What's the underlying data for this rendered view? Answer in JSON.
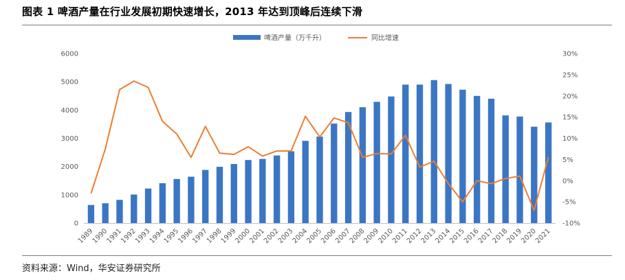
{
  "title": "图表 1  啤酒产量在行业发展初期快速增长，2013 年达到顶峰后连续下滑",
  "source": "资料来源：Wind，华安证券研究所",
  "chart_data": {
    "type": "bar",
    "categories": [
      "1989",
      "1990",
      "1991",
      "1992",
      "1993",
      "1994",
      "1995",
      "1996",
      "1997",
      "1998",
      "1999",
      "2000",
      "2001",
      "2002",
      "2003",
      "2004",
      "2005",
      "2006",
      "2007",
      "2008",
      "2009",
      "2010",
      "2011",
      "2012",
      "2013",
      "2014",
      "2015",
      "2016",
      "2017",
      "2018",
      "2019",
      "2020",
      "2021"
    ],
    "series": [
      {
        "name": "啤酒产量（万千升）",
        "type": "bar",
        "axis": "left",
        "color": "#3a76c4",
        "values": [
          640,
          700,
          820,
          1010,
          1220,
          1410,
          1560,
          1640,
          1880,
          1990,
          2090,
          2230,
          2270,
          2390,
          2540,
          2910,
          3060,
          3520,
          3930,
          4100,
          4290,
          4480,
          4900,
          4900,
          5060,
          4920,
          4720,
          4500,
          4400,
          3810,
          3770,
          3410,
          3560
        ]
      },
      {
        "name": "同比增速",
        "type": "line",
        "axis": "right",
        "color": "#ed7d31",
        "values": [
          -3.0,
          7.5,
          21.5,
          23.5,
          22.0,
          14.0,
          11.0,
          5.5,
          12.8,
          6.5,
          6.2,
          8.0,
          5.8,
          7.0,
          7.0,
          15.2,
          10.3,
          14.8,
          13.7,
          5.5,
          6.4,
          6.3,
          10.7,
          3.2,
          4.6,
          -0.7,
          -5.0,
          0.0,
          -0.7,
          0.5,
          1.1,
          -7.0,
          5.6
        ]
      }
    ],
    "ylim_left": [
      0,
      6000
    ],
    "yticks_left": [
      "0",
      "1000",
      "2000",
      "3000",
      "4000",
      "5000",
      "6000"
    ],
    "ylim_right": [
      -10,
      30
    ],
    "yticks_right": [
      "-10%",
      "-5%",
      "0%",
      "5%",
      "10%",
      "15%",
      "20%",
      "25%",
      "30%"
    ],
    "legend_position": "top-center",
    "grid": false
  }
}
